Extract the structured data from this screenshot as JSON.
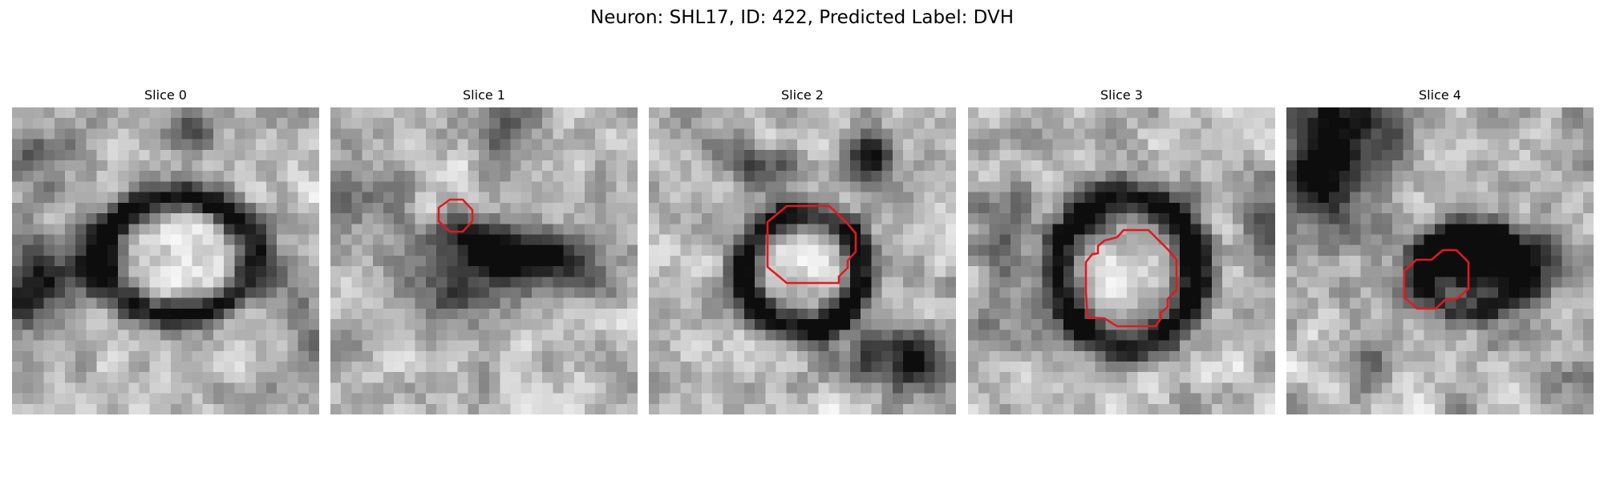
{
  "figure": {
    "title": "Neuron: SHL17, ID: 422, Predicted Label: DVH"
  },
  "colors": {
    "contour": "#e3191c",
    "background": "#ffffff"
  },
  "panels": [
    {
      "title": "Slice 0"
    },
    {
      "title": "Slice 1"
    },
    {
      "title": "Slice 2"
    },
    {
      "title": "Slice 3"
    },
    {
      "title": "Slice 4"
    }
  ]
}
